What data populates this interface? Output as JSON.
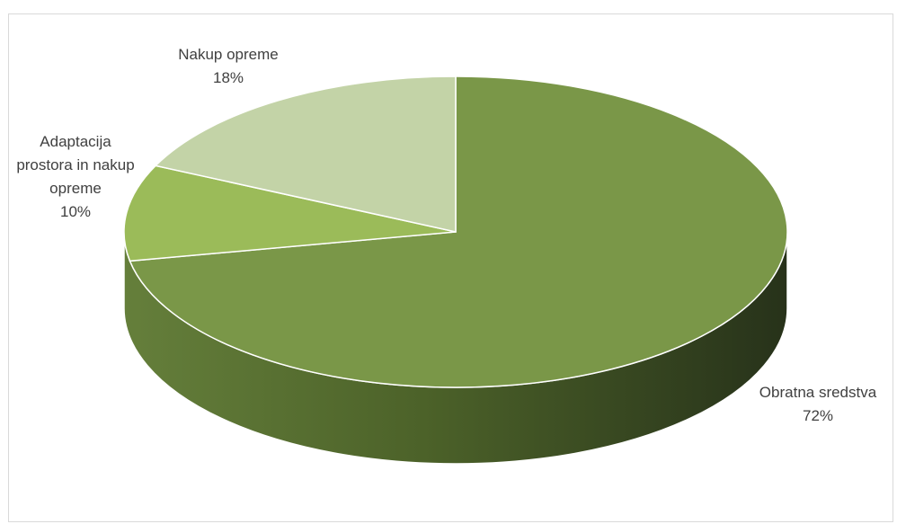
{
  "chart_data": {
    "type": "pie",
    "style": "3d",
    "title": "",
    "slices": [
      {
        "label_lines": [
          "Obratna sredstva"
        ],
        "percent_label": "72%",
        "value": 72,
        "color": "#7a9748"
      },
      {
        "label_lines": [
          "Adaptacija",
          "prostora in nakup",
          "opreme"
        ],
        "percent_label": "10%",
        "value": 10,
        "color": "#9bbb59"
      },
      {
        "label_lines": [
          "Nakup opreme"
        ],
        "percent_label": "18%",
        "value": 18,
        "color": "#c3d3a7"
      }
    ],
    "start": "12 o'clock",
    "direction": "clockwise",
    "legend": "none",
    "data_labels": "category name and percentage, outside end"
  }
}
